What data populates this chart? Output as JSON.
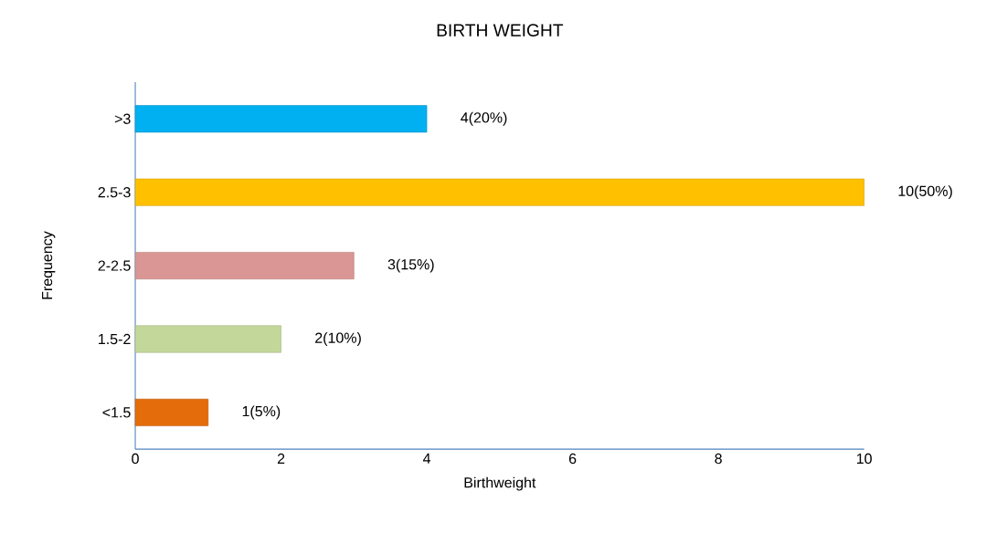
{
  "chart_data": {
    "type": "bar",
    "orientation": "horizontal",
    "title": "BIRTH WEIGHT",
    "xlabel": "Birthweight",
    "ylabel": "Frequency",
    "categories": [
      ">3",
      "2.5-3",
      "2-2.5",
      "1.5-2",
      "<1.5"
    ],
    "values": [
      4,
      10,
      3,
      2,
      1
    ],
    "colors": [
      "#00b0f0",
      "#ffc000",
      "#da9694",
      "#c4d79b",
      "#e46c0a"
    ],
    "value_labels": [
      "4(20%)",
      "10(50%)",
      "3(15%)",
      "2(10%)",
      "1(5%)"
    ],
    "xlim": [
      0,
      10
    ],
    "xticks": [
      0,
      2,
      4,
      6,
      8,
      10
    ],
    "grid": false
  }
}
